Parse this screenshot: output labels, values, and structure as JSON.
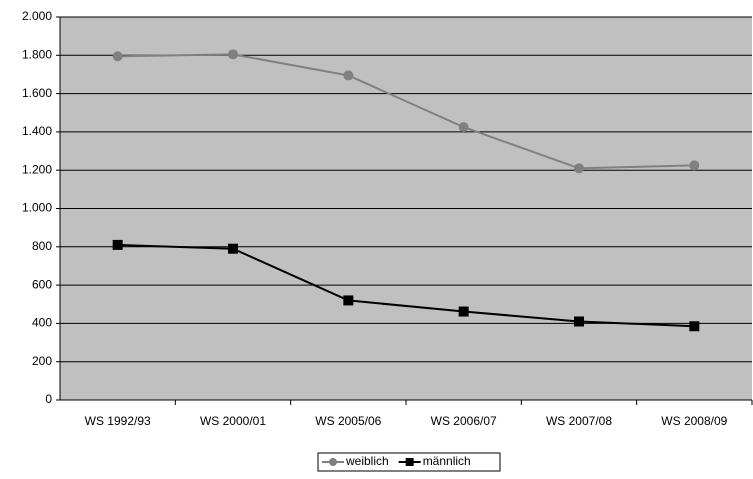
{
  "chart_data": {
    "type": "line",
    "categories": [
      "WS 1992/93",
      "WS 2000/01",
      "WS 2005/06",
      "WS 2006/07",
      "WS 2007/08",
      "WS 2008/09"
    ],
    "series": [
      {
        "name": "weiblich",
        "color": "#808080",
        "marker": "circle",
        "values": [
          1795,
          1805,
          1695,
          1425,
          1210,
          1225
        ]
      },
      {
        "name": "männlich",
        "color": "#000000",
        "marker": "square",
        "values": [
          810,
          790,
          520,
          462,
          410,
          385
        ]
      }
    ],
    "ylim": [
      0,
      2000
    ],
    "yticks": [
      0,
      200,
      400,
      600,
      800,
      {
        "value": 1000,
        "label": "1.000"
      },
      {
        "value": 1200,
        "label": "1.200"
      },
      {
        "value": 1400,
        "label": "1.400"
      },
      {
        "value": 1600,
        "label": "1.600"
      },
      {
        "value": 1800,
        "label": "1.800"
      },
      {
        "value": 2000,
        "label": "2.000"
      }
    ],
    "grid": true,
    "legend": "bottom"
  }
}
